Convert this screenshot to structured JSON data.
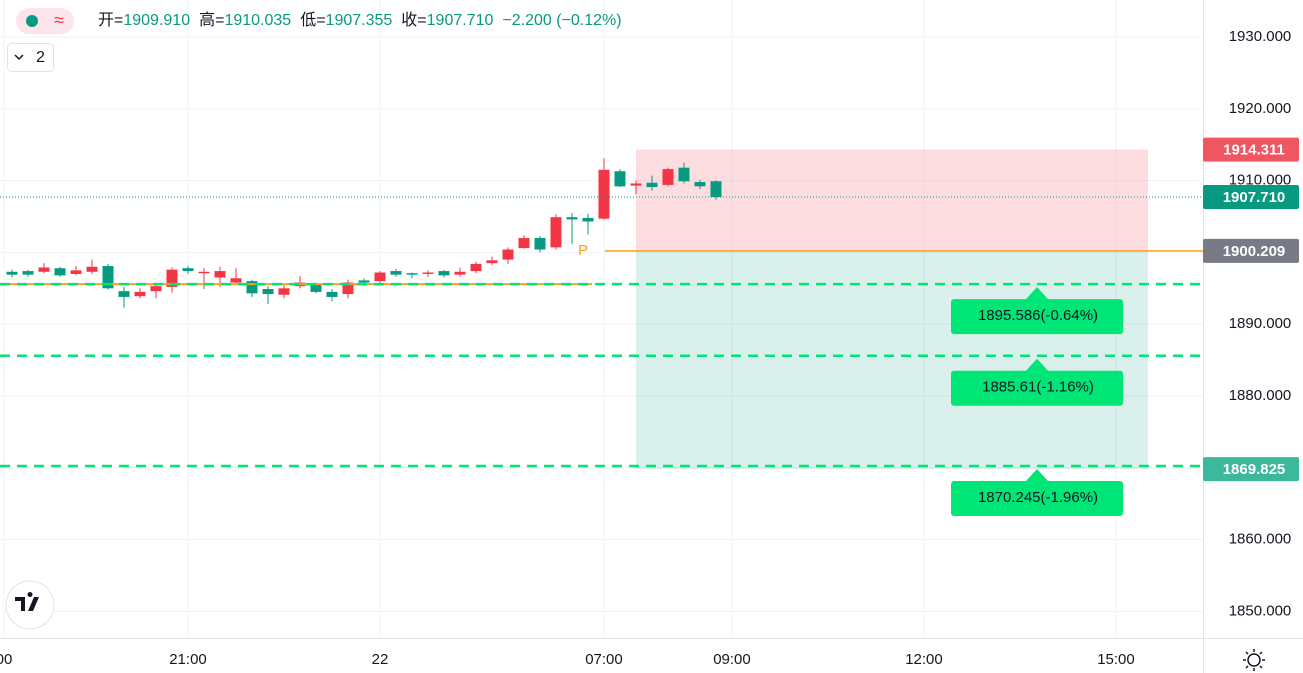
{
  "chart_data": {
    "type": "candlestick",
    "header": [
      {
        "label": "开=",
        "value": "1909.910"
      },
      {
        "label": "高=",
        "value": "1910.035"
      },
      {
        "label": "低=",
        "value": "1907.355"
      },
      {
        "label": "收=",
        "value": "1907.710"
      }
    ],
    "change": "−2.200 (−0.12%)",
    "indicator_count": "2",
    "x": [
      0,
      1,
      2,
      3,
      4,
      5,
      6,
      7,
      8,
      9,
      10,
      11,
      12,
      13,
      14,
      15,
      16,
      17,
      18,
      19,
      20,
      21,
      22,
      23,
      24,
      25,
      26,
      27,
      28,
      29,
      30,
      31,
      32,
      33,
      34,
      35,
      36,
      37,
      38,
      39,
      40,
      41,
      42,
      43,
      44
    ],
    "open": [
      1897.3,
      1897.4,
      1897.3,
      1897.8,
      1897.0,
      1897.3,
      1898.1,
      1894.6,
      1893.9,
      1894.6,
      1895.2,
      1897.8,
      1897.1,
      1896.5,
      1895.8,
      1896.0,
      1894.9,
      1894.1,
      1895.3,
      1895.6,
      1894.5,
      1894.2,
      1896.1,
      1896.0,
      1897.4,
      1897.1,
      1897.0,
      1897.4,
      1896.9,
      1897.4,
      1898.5,
      1899.0,
      1900.6,
      1902.0,
      1900.7,
      1904.9,
      1904.8,
      1904.7,
      1911.3,
      1909.3,
      1909.7,
      1909.4,
      1911.8,
      1909.8,
      1909.91
    ],
    "high": [
      1897.6,
      1897.6,
      1898.5,
      1898.0,
      1898.1,
      1899.0,
      1898.4,
      1895.2,
      1895.0,
      1895.8,
      1897.9,
      1898.1,
      1897.8,
      1898.0,
      1897.8,
      1896.2,
      1895.3,
      1895.6,
      1896.7,
      1895.8,
      1894.9,
      1896.2,
      1896.4,
      1897.4,
      1897.7,
      1897.2,
      1897.5,
      1897.6,
      1897.9,
      1898.7,
      1899.4,
      1900.7,
      1902.4,
      1902.3,
      1905.3,
      1905.5,
      1905.4,
      1913.1,
      1911.6,
      1910.0,
      1910.7,
      1911.8,
      1912.5,
      1910.1,
      1910.035
    ],
    "low": [
      1896.5,
      1896.6,
      1897.1,
      1896.6,
      1896.8,
      1897.0,
      1894.8,
      1892.3,
      1893.6,
      1893.6,
      1894.4,
      1897.0,
      1894.9,
      1895.2,
      1895.4,
      1893.8,
      1892.8,
      1893.6,
      1895.0,
      1894.3,
      1893.2,
      1893.6,
      1895.3,
      1895.7,
      1896.6,
      1896.4,
      1896.6,
      1896.5,
      1896.6,
      1897.1,
      1898.2,
      1898.4,
      1900.5,
      1900.0,
      1900.4,
      1901.2,
      1902.5,
      1904.5,
      1909.1,
      1908.1,
      1908.6,
      1909.2,
      1909.6,
      1908.8,
      1907.355
    ],
    "close": [
      1896.9,
      1896.9,
      1897.9,
      1896.8,
      1897.5,
      1898.0,
      1895.0,
      1893.8,
      1894.5,
      1895.3,
      1897.6,
      1897.4,
      1897.3,
      1897.4,
      1896.4,
      1894.3,
      1894.2,
      1895.0,
      1895.8,
      1894.5,
      1893.8,
      1895.8,
      1895.8,
      1897.2,
      1896.9,
      1896.9,
      1897.2,
      1896.8,
      1897.3,
      1898.4,
      1898.9,
      1900.4,
      1902.0,
      1900.4,
      1904.9,
      1904.6,
      1904.3,
      1911.5,
      1909.2,
      1909.6,
      1909.1,
      1911.6,
      1909.9,
      1909.2,
      1907.71
    ],
    "up_color": "#f23645",
    "down_color": "#089981",
    "xlim": [
      -0.75,
      74.44
    ],
    "xticks": [
      {
        "value": -0.5,
        "label": "00"
      },
      {
        "value": 11,
        "label": "21:00"
      },
      {
        "value": 23,
        "label": "22"
      },
      {
        "value": 37,
        "label": "07:00"
      },
      {
        "value": 45,
        "label": "09:00"
      },
      {
        "value": 57,
        "label": "12:00"
      },
      {
        "value": 69,
        "label": "15:00"
      }
    ],
    "ylim": [
      1846.3,
      1935.15
    ],
    "yticks": [
      {
        "value": 1850,
        "label": "1850.000"
      },
      {
        "value": 1860,
        "label": "1860.000"
      },
      {
        "value": 1870,
        "label": "1870.000"
      },
      {
        "value": 1880,
        "label": "1880.000"
      },
      {
        "value": 1890,
        "label": "1890.000"
      },
      {
        "value": 1900,
        "label": "1900.000"
      },
      {
        "value": 1910,
        "label": "1910.000"
      },
      {
        "value": 1920,
        "label": "1920.000"
      },
      {
        "value": 1930,
        "label": "1930.000"
      }
    ],
    "grid": true,
    "last_price": {
      "value": 1907.71,
      "label": "1907.710"
    },
    "position": {
      "marker": "P",
      "x_range": [
        39,
        71
      ],
      "entry": {
        "value": 1900.209,
        "label": "1900.209"
      },
      "upper": {
        "value": 1914.311,
        "label": "1914.311"
      },
      "lower": {
        "value": 1869.825,
        "label": "1869.825"
      }
    },
    "levels": [
      {
        "value": 1895.586,
        "label": "1895.586(-0.64%)"
      },
      {
        "value": 1885.61,
        "label": "1885.61(-1.16%)"
      },
      {
        "value": 1870.245,
        "label": "1870.245(-1.96%)"
      }
    ]
  }
}
